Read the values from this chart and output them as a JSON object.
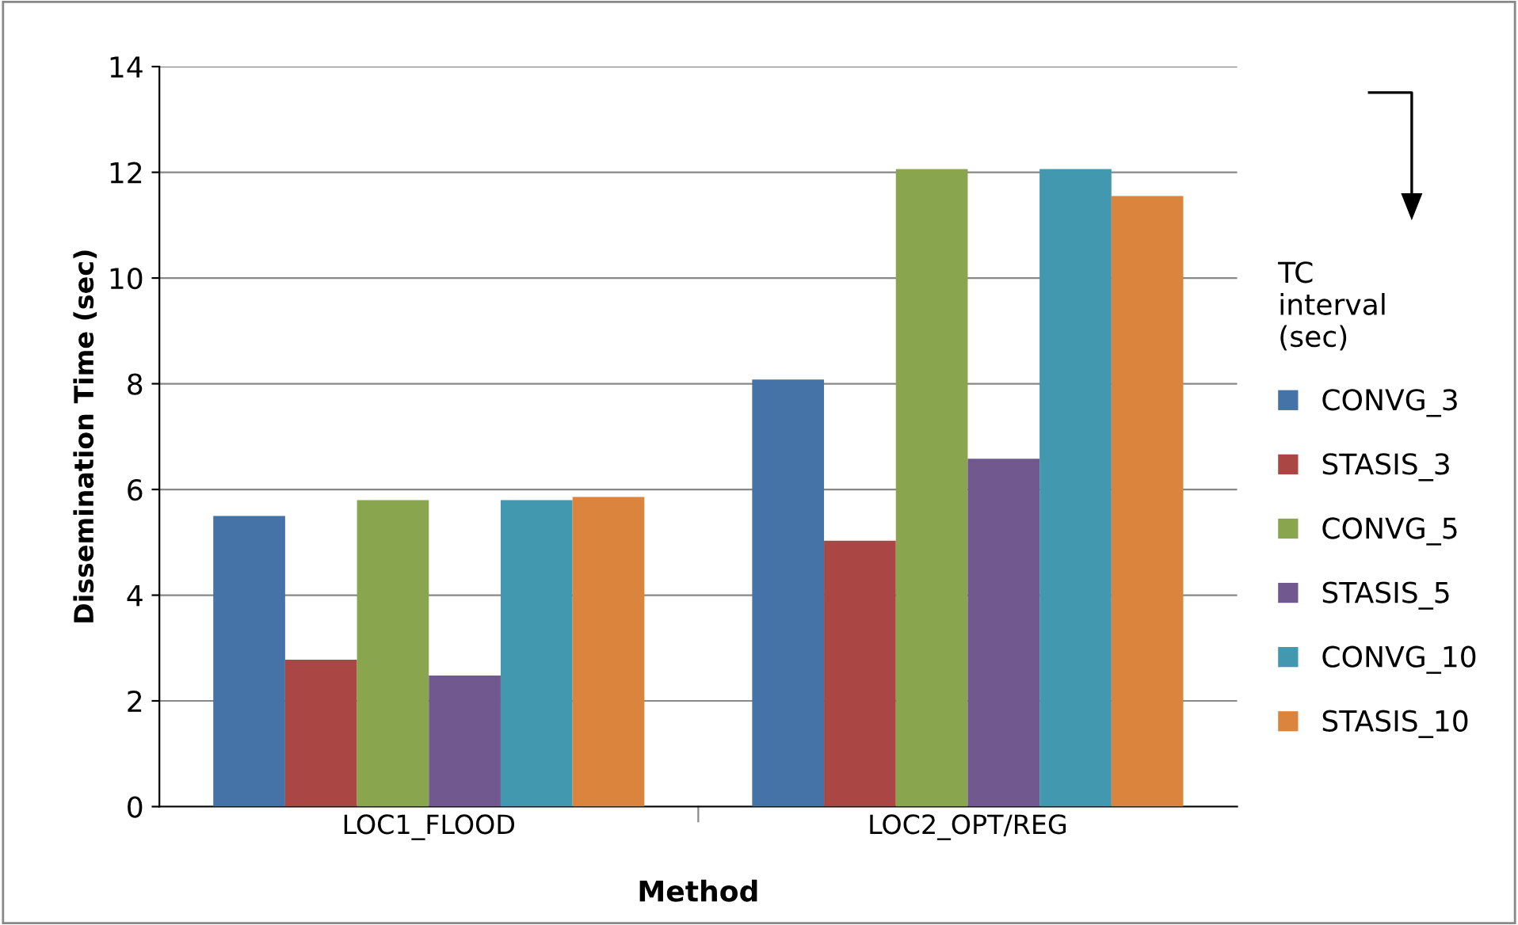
{
  "chart_data": {
    "type": "bar",
    "xlabel": "Method",
    "ylabel": "Dissemination Time (sec)",
    "legend_title": "TC interval (sec)",
    "categories": [
      "LOC1_FLOOD",
      "LOC2_OPT/REG"
    ],
    "series": [
      {
        "name": "CONVG_3",
        "color": "#4572a7",
        "values": [
          5.5,
          8.08
        ]
      },
      {
        "name": "STASIS_3",
        "color": "#aa4643",
        "values": [
          2.78,
          5.03
        ]
      },
      {
        "name": "CONVG_5",
        "color": "#89a54e",
        "values": [
          5.8,
          12.06
        ]
      },
      {
        "name": "STASIS_5",
        "color": "#71588f",
        "values": [
          2.48,
          6.58
        ]
      },
      {
        "name": "CONVG_10",
        "color": "#4198af",
        "values": [
          5.8,
          12.06
        ]
      },
      {
        "name": "STASIS_10",
        "color": "#db843d",
        "values": [
          5.86,
          11.55
        ]
      }
    ],
    "ylim": [
      0,
      14
    ],
    "yticks": [
      0,
      2,
      4,
      6,
      8,
      10,
      12,
      14
    ],
    "grid": "y",
    "legend": "right"
  }
}
